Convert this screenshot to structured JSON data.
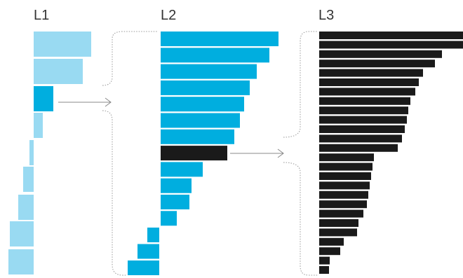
{
  "colors": {
    "level1_bar": "#99daf2",
    "level2_bar": "#00aedf",
    "selected_bar": "#00aedf",
    "level3_bar": "#1a1a1a",
    "connector": "#888888",
    "bracket": "#999999"
  },
  "levels": [
    {
      "title": "L1",
      "bar_values": [
        82,
        70,
        28,
        13,
        6,
        15,
        22,
        34,
        36
      ],
      "highlight_index": 2
    },
    {
      "title": "L2",
      "bar_values": [
        168,
        155,
        137,
        127,
        119,
        113,
        105,
        95,
        60,
        44,
        41,
        23
      ],
      "extra_bar_values": [
        17,
        31,
        45
      ],
      "highlight_index": 7
    },
    {
      "title": "L3",
      "bar_values": [
        205,
        205,
        175,
        165,
        148,
        142,
        137,
        130,
        127,
        125,
        122,
        118,
        112,
        78,
        76,
        74,
        72,
        70,
        68,
        63,
        56,
        54,
        35,
        30,
        15,
        14
      ]
    }
  ]
}
